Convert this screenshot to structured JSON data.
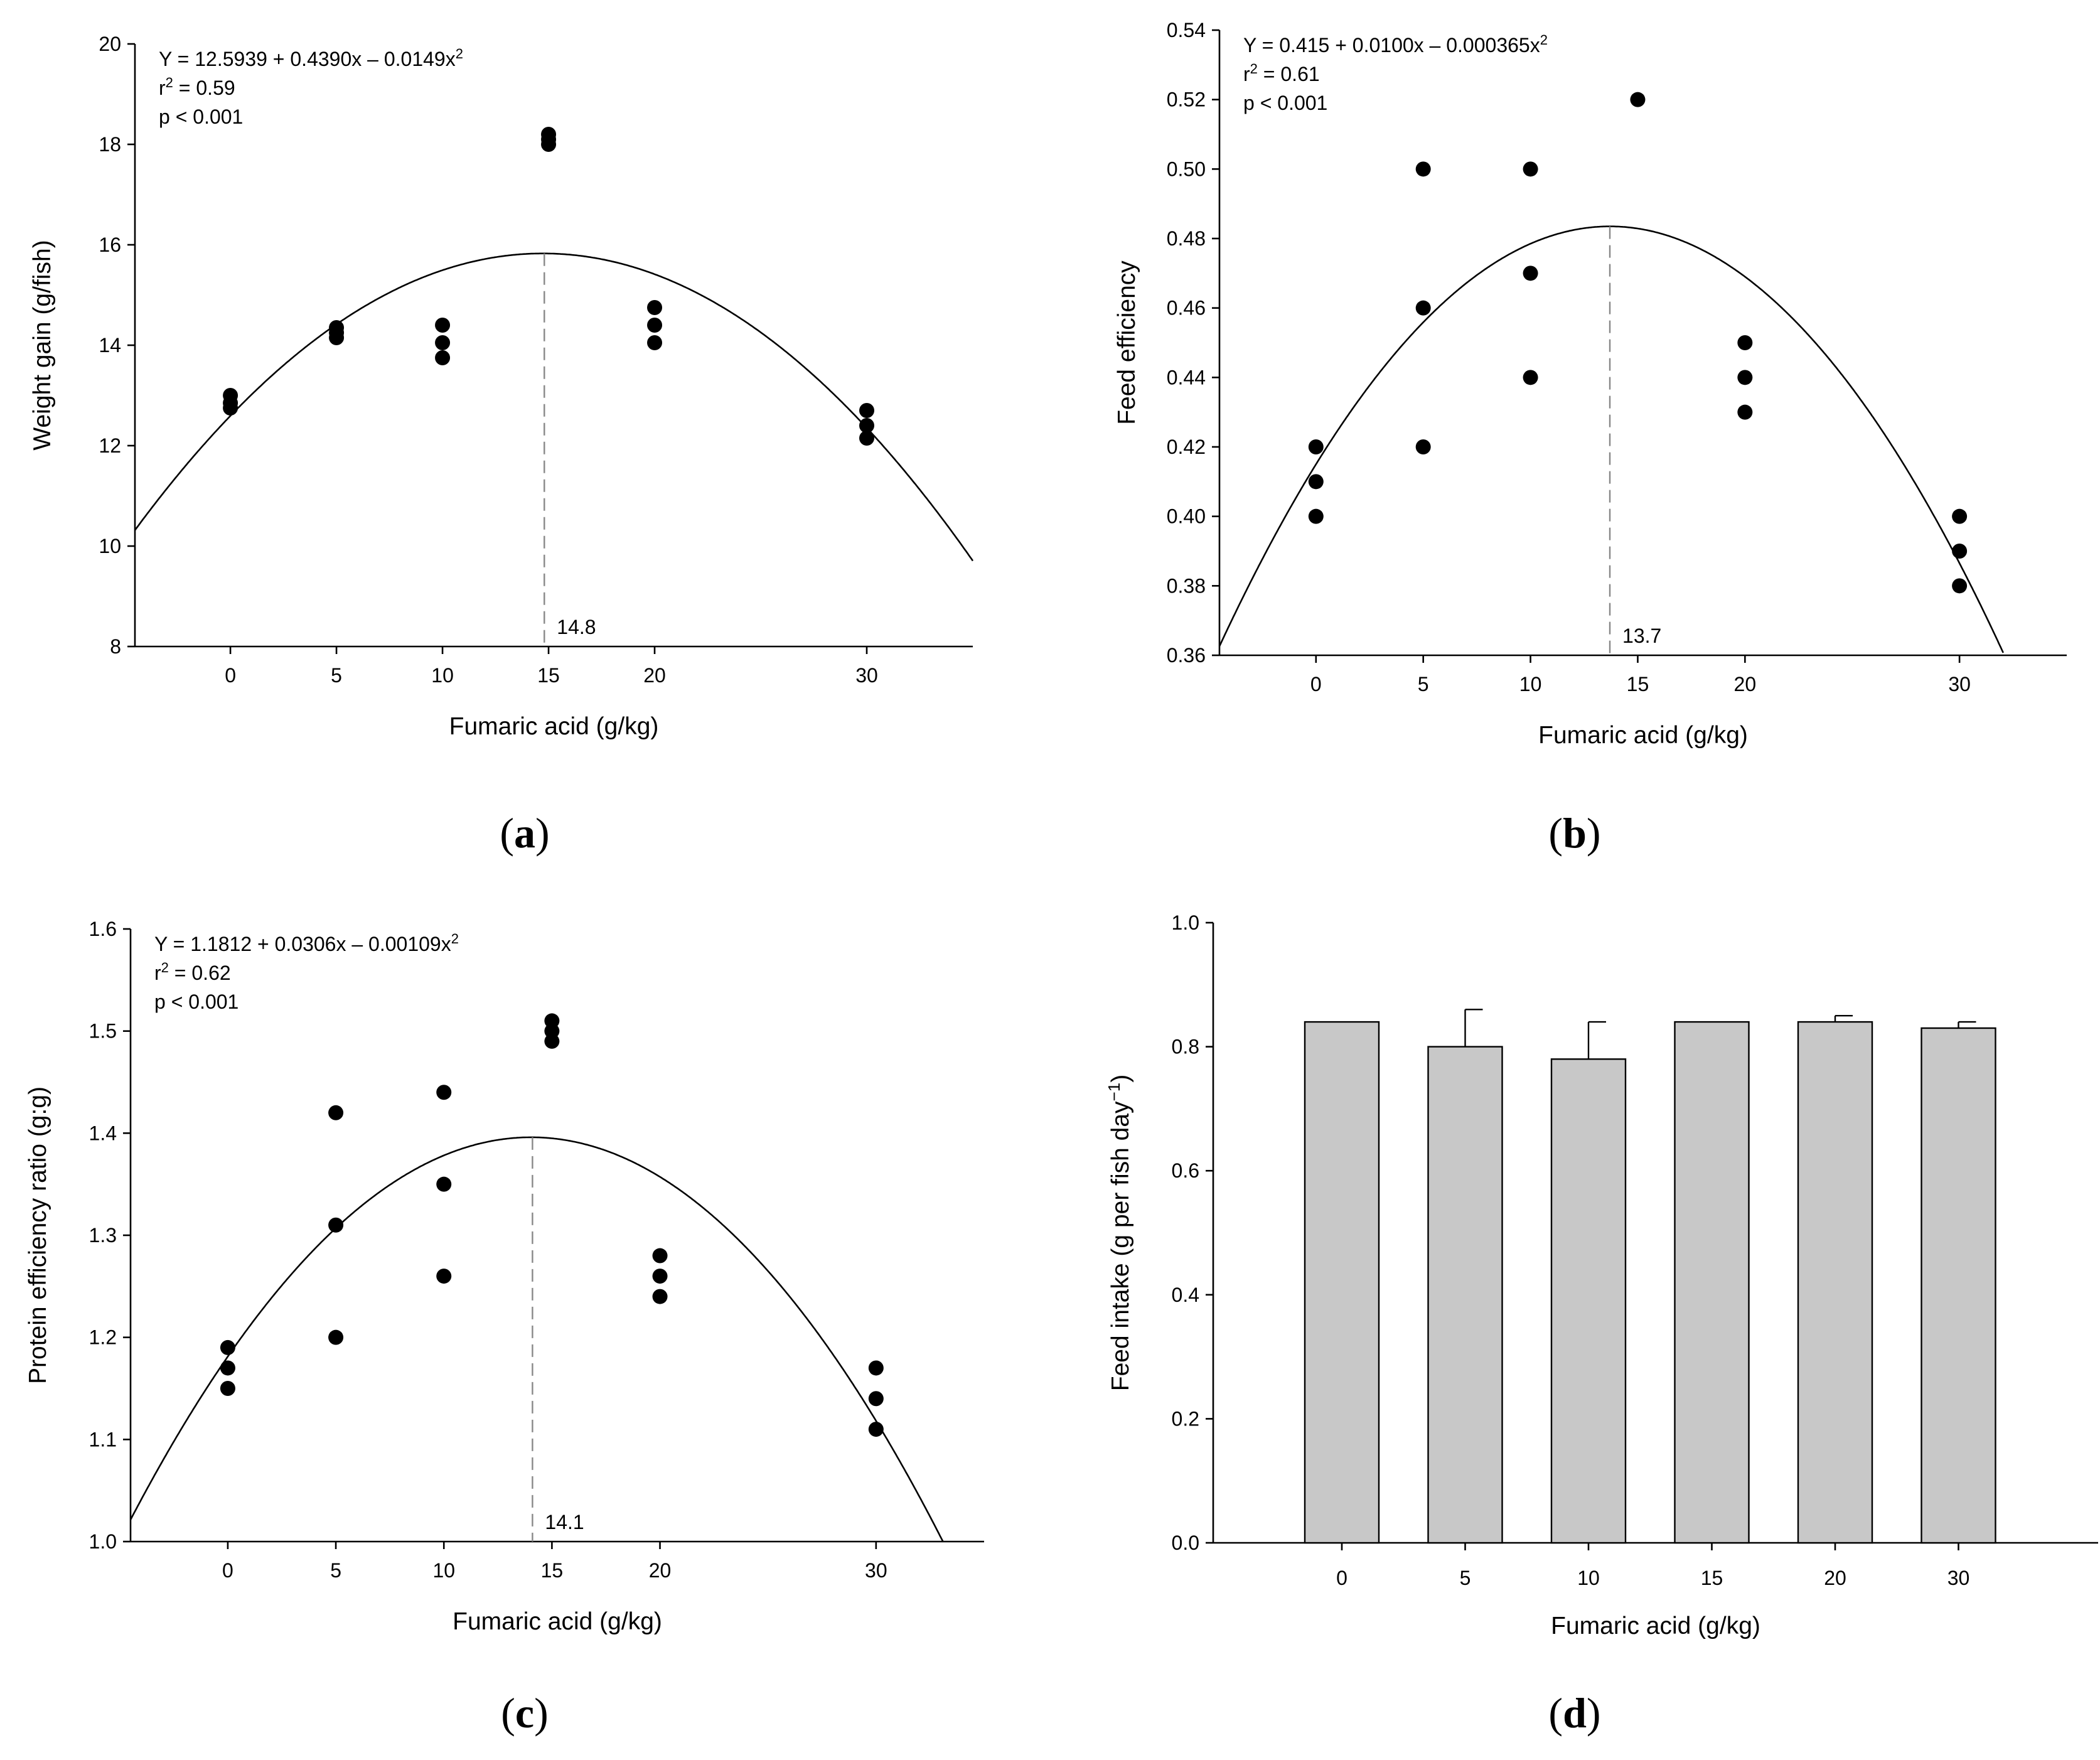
{
  "chart_data": [
    {
      "id": "a",
      "type": "scatter",
      "panel_label": "a",
      "xlabel": "Fumaric acid (g/kg)",
      "ylabel": "Weight gain (g/fish)",
      "xlim": [
        -4.5,
        35
      ],
      "ylim": [
        8,
        20
      ],
      "xticks": [
        0,
        5,
        10,
        15,
        20,
        30
      ],
      "yticks": [
        8,
        10,
        12,
        14,
        16,
        18,
        20
      ],
      "ytick_decimals": 0,
      "equation_prefix": "Y = 12.5939 + 0.4390x – 0.0149x",
      "equation_sup": "2",
      "r2_pre": "r",
      "r2_sup": "2",
      "r2_post": " = 0.59",
      "p_text": "p < 0.001",
      "fit": {
        "a": 12.5939,
        "b": 0.439,
        "c": -0.0149
      },
      "optimum": 14.8,
      "optimum_label": "14.8",
      "points": [
        [
          0,
          13.0
        ],
        [
          0,
          12.85
        ],
        [
          0,
          12.75
        ],
        [
          5,
          14.35
        ],
        [
          5,
          14.25
        ],
        [
          5,
          14.15
        ],
        [
          10,
          14.4
        ],
        [
          10,
          14.05
        ],
        [
          10,
          13.75
        ],
        [
          15,
          18.2
        ],
        [
          15,
          18.1
        ],
        [
          15,
          18.0
        ],
        [
          20,
          14.75
        ],
        [
          20,
          14.4
        ],
        [
          20,
          14.05
        ],
        [
          30,
          12.7
        ],
        [
          30,
          12.4
        ],
        [
          30,
          12.15
        ]
      ]
    },
    {
      "id": "b",
      "type": "scatter",
      "panel_label": "b",
      "xlabel": "Fumaric acid (g/kg)",
      "ylabel": "Feed efficiency",
      "xlim": [
        -4.5,
        35
      ],
      "ylim": [
        0.36,
        0.54
      ],
      "xticks": [
        0,
        5,
        10,
        15,
        20,
        30
      ],
      "yticks": [
        0.36,
        0.38,
        0.4,
        0.42,
        0.44,
        0.46,
        0.48,
        0.5,
        0.52,
        0.54
      ],
      "ytick_decimals": 2,
      "equation_prefix": "Y = 0.415 + 0.0100x – 0.000365x",
      "equation_sup": "2",
      "r2_pre": "r",
      "r2_sup": "2",
      "r2_post": " = 0.61",
      "p_text": "p < 0.001",
      "fit": {
        "a": 0.415,
        "b": 0.01,
        "c": -0.000365
      },
      "optimum": 13.7,
      "optimum_label": "13.7",
      "points": [
        [
          0,
          0.42
        ],
        [
          0,
          0.41
        ],
        [
          0,
          0.4
        ],
        [
          5,
          0.5
        ],
        [
          5,
          0.46
        ],
        [
          5,
          0.42
        ],
        [
          10,
          0.5
        ],
        [
          10,
          0.47
        ],
        [
          10,
          0.44
        ],
        [
          15,
          0.52
        ],
        [
          20,
          0.45
        ],
        [
          20,
          0.44
        ],
        [
          20,
          0.43
        ],
        [
          30,
          0.4
        ],
        [
          30,
          0.39
        ],
        [
          30,
          0.38
        ]
      ]
    },
    {
      "id": "c",
      "type": "scatter",
      "panel_label": "c",
      "xlabel": "Fumaric acid (g/kg)",
      "ylabel": "Protein efficiency ratio (g:g)",
      "xlim": [
        -4.5,
        35
      ],
      "ylim": [
        1.0,
        1.6
      ],
      "xticks": [
        0,
        5,
        10,
        15,
        20,
        30
      ],
      "yticks": [
        1.0,
        1.1,
        1.2,
        1.3,
        1.4,
        1.5,
        1.6
      ],
      "ytick_decimals": 1,
      "equation_prefix": "Y = 1.1812 + 0.0306x – 0.00109x",
      "equation_sup": "2",
      "r2_pre": "r",
      "r2_sup": "2",
      "r2_post": " = 0.62",
      "p_text": "p < 0.001",
      "fit": {
        "a": 1.1812,
        "b": 0.0306,
        "c": -0.00109
      },
      "optimum": 14.1,
      "optimum_label": "14.1",
      "points": [
        [
          0,
          1.19
        ],
        [
          0,
          1.17
        ],
        [
          0,
          1.15
        ],
        [
          5,
          1.42
        ],
        [
          5,
          1.31
        ],
        [
          5,
          1.2
        ],
        [
          10,
          1.44
        ],
        [
          10,
          1.35
        ],
        [
          10,
          1.26
        ],
        [
          15,
          1.51
        ],
        [
          15,
          1.5
        ],
        [
          15,
          1.49
        ],
        [
          20,
          1.28
        ],
        [
          20,
          1.26
        ],
        [
          20,
          1.24
        ],
        [
          30,
          1.17
        ],
        [
          30,
          1.14
        ],
        [
          30,
          1.11
        ]
      ]
    },
    {
      "id": "d",
      "type": "bar",
      "panel_label": "d",
      "xlabel": "Fumaric acid (g/kg)",
      "ylabel_main": "Feed intake (g per fish day",
      "ylabel_sup": "−1",
      "ylabel_end": ")",
      "categories": [
        "0",
        "5",
        "10",
        "15",
        "20",
        "30"
      ],
      "values": [
        0.84,
        0.8,
        0.78,
        0.84,
        0.84,
        0.83
      ],
      "errors": [
        0.0,
        0.06,
        0.06,
        0.0,
        0.01,
        0.01
      ],
      "ylim": [
        0.0,
        1.0
      ],
      "yticks": [
        0.0,
        0.2,
        0.4,
        0.6,
        0.8,
        1.0
      ],
      "ytick_decimals": 1
    }
  ]
}
